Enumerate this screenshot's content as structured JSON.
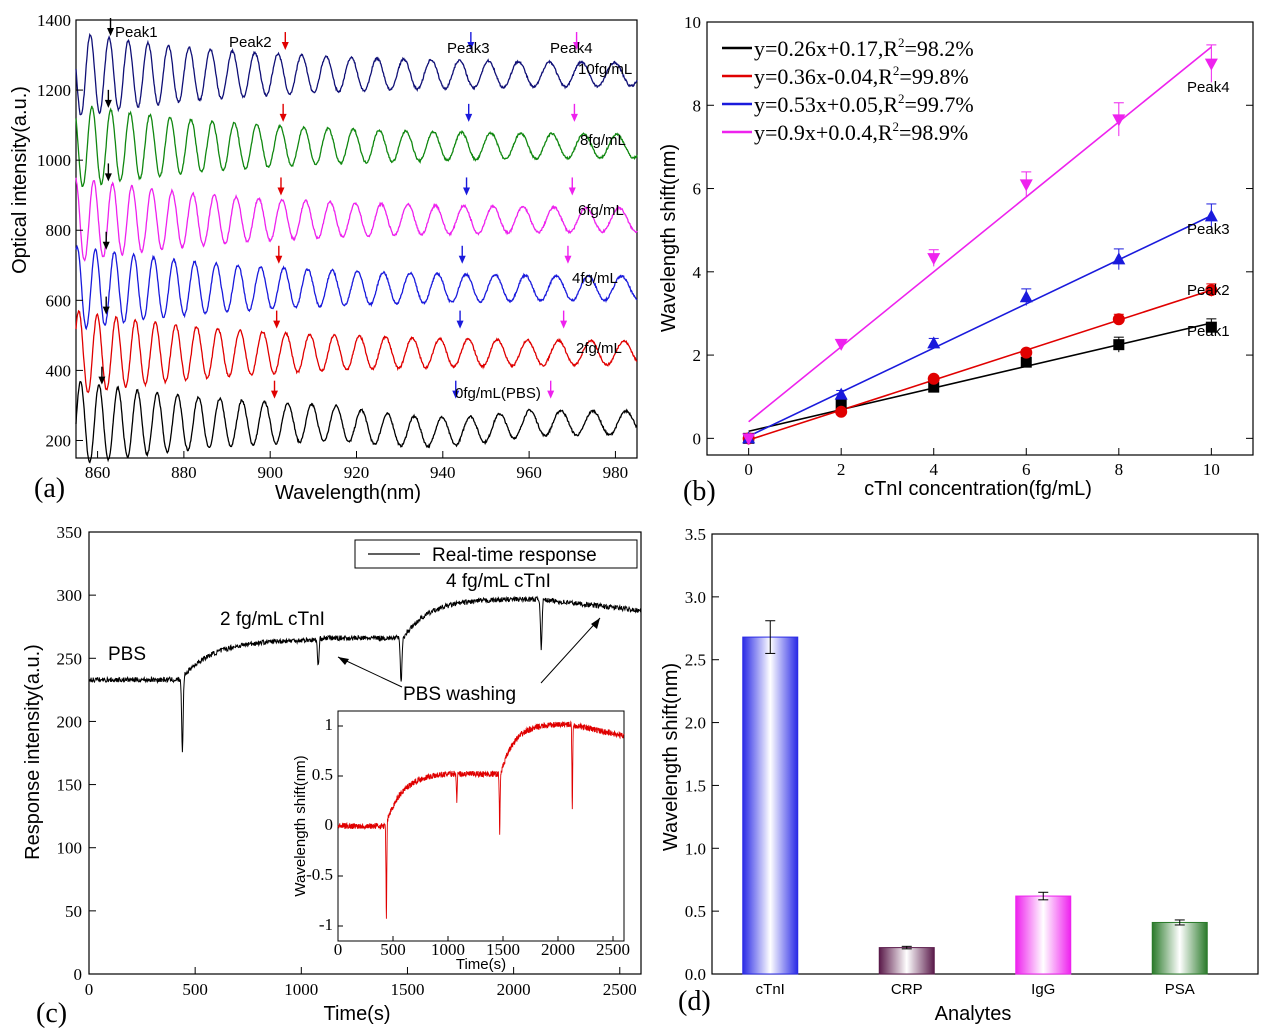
{
  "chart_data": [
    {
      "panel": "(a)",
      "type": "line",
      "xlabel": "Wavelength(nm)",
      "ylabel": "Optical intensity(a.u.)",
      "xlim": [
        855,
        985
      ],
      "ylim": [
        150,
        1400
      ],
      "x_ticks": [
        860,
        880,
        900,
        920,
        940,
        960,
        980
      ],
      "y_ticks": [
        200,
        400,
        600,
        800,
        1000,
        1200,
        1400
      ],
      "series": [
        {
          "name": "0fg/mL(PBS)",
          "color": "#000000",
          "baseline": 250,
          "marks": [
            861,
            901,
            943,
            965
          ]
        },
        {
          "name": "2fg/mL",
          "color": "#e00000",
          "baseline": 450,
          "marks": [
            862,
            901.5,
            944,
            968
          ]
        },
        {
          "name": "4fg/mL",
          "color": "#1a1adc",
          "baseline": 635,
          "marks": [
            862,
            902,
            944.5,
            969
          ]
        },
        {
          "name": "6fg/mL",
          "color": "#ee22ee",
          "baseline": 830,
          "marks": [
            862.5,
            902.5,
            945.5,
            970
          ]
        },
        {
          "name": "8fg/mL",
          "color": "#118811",
          "baseline": 1040,
          "marks": [
            862.5,
            903,
            946,
            970.5
          ]
        },
        {
          "name": "10fg/mL",
          "color": "#111177",
          "baseline": 1245,
          "marks": [
            863,
            903.5,
            946.5,
            971
          ]
        }
      ],
      "peak_labels": [
        "Peak1",
        "Peak2",
        "Peak3",
        "Peak4"
      ],
      "mark_colors": [
        "#000000",
        "#e00000",
        "#1a1adc",
        "#ee22ee"
      ]
    },
    {
      "panel": "(b)",
      "type": "scatter",
      "xlabel": "cTnI concentration(fg/mL)",
      "ylabel": "Wavelength shift(nm)",
      "xlim": [
        -0.9,
        10.9
      ],
      "ylim": [
        -0.4,
        10
      ],
      "x_ticks": [
        0,
        2,
        4,
        6,
        8,
        10
      ],
      "y_ticks": [
        0,
        2,
        4,
        6,
        8,
        10
      ],
      "x": [
        0,
        2,
        4,
        6,
        8,
        10
      ],
      "series": [
        {
          "name": "Peak1",
          "color": "#000000",
          "marker": "square",
          "values": [
            0,
            0.82,
            1.23,
            1.83,
            2.25,
            2.67
          ],
          "errors": [
            0.05,
            0.08,
            0.08,
            0.1,
            0.18,
            0.2
          ],
          "fit": [
            0.26,
            0.17
          ],
          "equation": "y=0.26x+0.17,R",
          "r2": "=98.2%"
        },
        {
          "name": "Peak2",
          "color": "#e00000",
          "marker": "circle",
          "values": [
            0,
            0.64,
            1.43,
            2.06,
            2.86,
            3.56
          ],
          "errors": [
            0.05,
            0.05,
            0.07,
            0.07,
            0.12,
            0.15
          ],
          "fit": [
            0.36,
            -0.04
          ],
          "equation": "y=0.36x-0.04,R",
          "r2": "=99.8%"
        },
        {
          "name": "Peak3",
          "color": "#1a1adc",
          "marker": "triangle",
          "values": [
            0,
            1.05,
            2.28,
            3.39,
            4.3,
            5.33
          ],
          "errors": [
            0.05,
            0.1,
            0.12,
            0.2,
            0.25,
            0.3
          ],
          "fit": [
            0.53,
            0.05
          ],
          "equation": "y=0.53x+0.05,R",
          "r2": "=99.7%"
        },
        {
          "name": "Peak4",
          "color": "#ee22ee",
          "marker": "triangle-down",
          "values": [
            0,
            2.27,
            4.33,
            6.1,
            7.66,
            9.0
          ],
          "errors": [
            0.05,
            0.1,
            0.2,
            0.3,
            0.4,
            0.45
          ],
          "fit": [
            0.9,
            0.4
          ],
          "equation": "y=0.9x+0.0.4,R",
          "r2": "=98.9%"
        }
      ],
      "r2_sup": "2"
    },
    {
      "panel": "(c)",
      "type": "line",
      "xlabel": "Time(s)",
      "ylabel": "Response intensity(a.u.)",
      "xlim": [
        0,
        2600
      ],
      "ylim": [
        0,
        350
      ],
      "x_ticks": [
        0,
        500,
        1000,
        1500,
        2000,
        2500
      ],
      "y_ticks": [
        0,
        50,
        100,
        150,
        200,
        250,
        300,
        350
      ],
      "legend": "Real-time response",
      "annotations": [
        "PBS",
        "2 fg/mL cTnI",
        "4 fg/mL cTnI",
        "PBS washing"
      ],
      "inset": {
        "xlabel": "Time(s)",
        "ylabel": "Wavelength shift(nm)",
        "xlim": [
          0,
          2600
        ],
        "ylim": [
          -1.15,
          1.15
        ],
        "x_ticks": [
          0,
          500,
          1000,
          1500,
          2000,
          2500
        ],
        "y_ticks": [
          -1,
          -0.5,
          0,
          0.5,
          1
        ],
        "color": "#e00000"
      }
    },
    {
      "panel": "(d)",
      "type": "bar",
      "xlabel": "Analytes",
      "ylabel": "Wavelength shift(nm)",
      "ylim": [
        0,
        3.5
      ],
      "y_ticks": [
        0.0,
        0.5,
        1.0,
        1.5,
        2.0,
        2.5,
        3.0,
        3.5
      ],
      "categories": [
        "cTnI",
        "CRP",
        "IgG",
        "PSA"
      ],
      "values": [
        2.68,
        0.21,
        0.62,
        0.41
      ],
      "errors": [
        0.13,
        0.01,
        0.03,
        0.02
      ],
      "colors": [
        "#2a2ae6",
        "#5a1a4a",
        "#ee22ee",
        "#2a7a2a"
      ]
    }
  ]
}
